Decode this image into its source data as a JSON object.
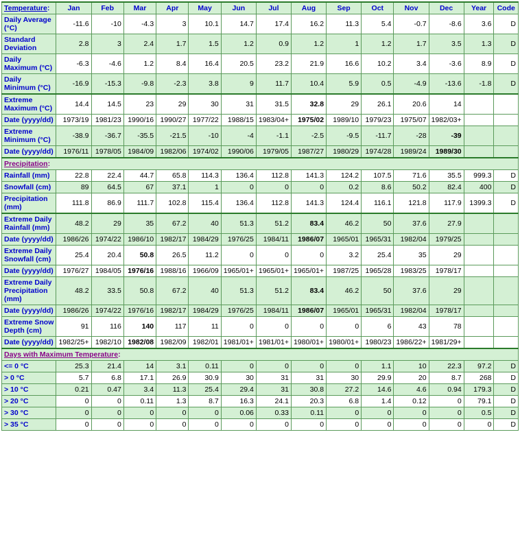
{
  "columns": [
    "Jan",
    "Feb",
    "Mar",
    "Apr",
    "May",
    "Jun",
    "Jul",
    "Aug",
    "Sep",
    "Oct",
    "Nov",
    "Dec",
    "Year",
    "Code"
  ],
  "sections": [
    {
      "title": "Temperature:",
      "header": true,
      "rows": [
        {
          "label": "Daily Average (°C)",
          "bg": "plain",
          "vals": [
            "-11.6",
            "-10",
            "-4.3",
            "3",
            "10.1",
            "14.7",
            "17.4",
            "16.2",
            "11.3",
            "5.4",
            "-0.7",
            "-8.6",
            "3.6",
            "D"
          ],
          "bold": []
        },
        {
          "label": "Standard Deviation",
          "bg": "alt",
          "vals": [
            "2.8",
            "3",
            "2.4",
            "1.7",
            "1.5",
            "1.2",
            "0.9",
            "1.2",
            "1",
            "1.2",
            "1.7",
            "3.5",
            "1.3",
            "D"
          ],
          "bold": []
        },
        {
          "label": "Daily Maximum (°C)",
          "bg": "plain",
          "vals": [
            "-6.3",
            "-4.6",
            "1.2",
            "8.4",
            "16.4",
            "20.5",
            "23.2",
            "21.9",
            "16.6",
            "10.2",
            "3.4",
            "-3.6",
            "8.9",
            "D"
          ],
          "bold": []
        },
        {
          "label": "Daily Minimum (°C)",
          "bg": "alt",
          "vals": [
            "-16.9",
            "-15.3",
            "-9.8",
            "-2.3",
            "3.8",
            "9",
            "11.7",
            "10.4",
            "5.9",
            "0.5",
            "-4.9",
            "-13.6",
            "-1.8",
            "D"
          ],
          "bold": []
        },
        {
          "label": "Extreme Maximum (°C)",
          "bg": "plain",
          "thick": true,
          "vals": [
            "14.4",
            "14.5",
            "23",
            "29",
            "30",
            "31",
            "31.5",
            "32.8",
            "29",
            "26.1",
            "20.6",
            "14",
            "",
            ""
          ],
          "bold": [
            7
          ]
        },
        {
          "label": "Date (yyyy/dd)",
          "bg": "plain",
          "vals": [
            "1973/19",
            "1981/23",
            "1990/16",
            "1990/27",
            "1977/22",
            "1988/15",
            "1983/04+",
            "1975/02",
            "1989/10",
            "1979/23",
            "1975/07",
            "1982/03+",
            "",
            ""
          ],
          "bold": [
            7
          ]
        },
        {
          "label": "Extreme Minimum (°C)",
          "bg": "alt",
          "vals": [
            "-38.9",
            "-36.7",
            "-35.5",
            "-21.5",
            "-10",
            "-4",
            "-1.1",
            "-2.5",
            "-9.5",
            "-11.7",
            "-28",
            "-39",
            "",
            ""
          ],
          "bold": [
            11
          ]
        },
        {
          "label": "Date (yyyy/dd)",
          "bg": "alt",
          "vals": [
            "1976/11",
            "1978/05",
            "1984/09",
            "1982/06",
            "1974/02",
            "1990/06",
            "1979/05",
            "1987/27",
            "1980/29",
            "1974/28",
            "1989/24",
            "1989/30",
            "",
            ""
          ],
          "bold": [
            11
          ]
        }
      ]
    },
    {
      "title": "Precipitation:",
      "rows": [
        {
          "label": "Rainfall (mm)",
          "bg": "plain",
          "vals": [
            "22.8",
            "22.4",
            "44.7",
            "65.8",
            "114.3",
            "136.4",
            "112.8",
            "141.3",
            "124.2",
            "107.5",
            "71.6",
            "35.5",
            "999.3",
            "D"
          ],
          "bold": []
        },
        {
          "label": "Snowfall (cm)",
          "bg": "alt",
          "vals": [
            "89",
            "64.5",
            "67",
            "37.1",
            "1",
            "0",
            "0",
            "0",
            "0.2",
            "8.6",
            "50.2",
            "82.4",
            "400",
            "D"
          ],
          "bold": []
        },
        {
          "label": "Precipitation (mm)",
          "bg": "plain",
          "vals": [
            "111.8",
            "86.9",
            "111.7",
            "102.8",
            "115.4",
            "136.4",
            "112.8",
            "141.3",
            "124.4",
            "116.1",
            "121.8",
            "117.9",
            "1399.3",
            "D"
          ],
          "bold": []
        },
        {
          "label": "Extreme Daily Rainfall (mm)",
          "bg": "alt",
          "thick": true,
          "vals": [
            "48.2",
            "29",
            "35",
            "67.2",
            "40",
            "51.3",
            "51.2",
            "83.4",
            "46.2",
            "50",
            "37.6",
            "27.9",
            "",
            ""
          ],
          "bold": [
            7
          ]
        },
        {
          "label": "Date (yyyy/dd)",
          "bg": "alt",
          "vals": [
            "1986/26",
            "1974/22",
            "1986/10",
            "1982/17",
            "1984/29",
            "1976/25",
            "1984/11",
            "1986/07",
            "1965/01",
            "1965/31",
            "1982/04",
            "1979/25",
            "",
            ""
          ],
          "bold": [
            7
          ]
        },
        {
          "label": "Extreme Daily Snowfall (cm)",
          "bg": "plain",
          "vals": [
            "25.4",
            "20.4",
            "50.8",
            "26.5",
            "11.2",
            "0",
            "0",
            "0",
            "3.2",
            "25.4",
            "35",
            "29",
            "",
            ""
          ],
          "bold": [
            2
          ]
        },
        {
          "label": "Date (yyyy/dd)",
          "bg": "plain",
          "vals": [
            "1976/27",
            "1984/05",
            "1976/16",
            "1988/16",
            "1966/09",
            "1965/01+",
            "1965/01+",
            "1965/01+",
            "1987/25",
            "1965/28",
            "1983/25",
            "1978/17",
            "",
            ""
          ],
          "bold": [
            2
          ]
        },
        {
          "label": "Extreme Daily Precipitation (mm)",
          "bg": "alt",
          "vals": [
            "48.2",
            "33.5",
            "50.8",
            "67.2",
            "40",
            "51.3",
            "51.2",
            "83.4",
            "46.2",
            "50",
            "37.6",
            "29",
            "",
            ""
          ],
          "bold": [
            7
          ]
        },
        {
          "label": "Date (yyyy/dd)",
          "bg": "alt",
          "vals": [
            "1986/26",
            "1974/22",
            "1976/16",
            "1982/17",
            "1984/29",
            "1976/25",
            "1984/11",
            "1986/07",
            "1965/01",
            "1965/31",
            "1982/04",
            "1978/17",
            "",
            ""
          ],
          "bold": [
            7
          ]
        },
        {
          "label": "Extreme Snow Depth (cm)",
          "bg": "plain",
          "vals": [
            "91",
            "116",
            "140",
            "117",
            "11",
            "0",
            "0",
            "0",
            "0",
            "6",
            "43",
            "78",
            "",
            ""
          ],
          "bold": [
            2
          ]
        },
        {
          "label": "Date (yyyy/dd)",
          "bg": "plain",
          "vals": [
            "1982/25+",
            "1982/10",
            "1982/08",
            "1982/09",
            "1982/01",
            "1981/01+",
            "1981/01+",
            "1980/01+",
            "1980/01+",
            "1980/23",
            "1986/22+",
            "1981/29+",
            "",
            ""
          ],
          "bold": [
            2
          ]
        }
      ]
    },
    {
      "title": "Days with Maximum Temperature:",
      "rows": [
        {
          "label": "<= 0 °C",
          "bg": "alt",
          "vals": [
            "25.3",
            "21.4",
            "14",
            "3.1",
            "0.11",
            "0",
            "0",
            "0",
            "0",
            "1.1",
            "10",
            "22.3",
            "97.2",
            "D"
          ],
          "bold": []
        },
        {
          "label": "> 0 °C",
          "bg": "plain",
          "vals": [
            "5.7",
            "6.8",
            "17.1",
            "26.9",
            "30.9",
            "30",
            "31",
            "31",
            "30",
            "29.9",
            "20",
            "8.7",
            "268",
            "D"
          ],
          "bold": []
        },
        {
          "label": "> 10 °C",
          "bg": "alt",
          "vals": [
            "0.21",
            "0.47",
            "3.4",
            "11.3",
            "25.4",
            "29.4",
            "31",
            "30.8",
            "27.2",
            "14.6",
            "4.6",
            "0.94",
            "179.3",
            "D"
          ],
          "bold": []
        },
        {
          "label": "> 20 °C",
          "bg": "plain",
          "vals": [
            "0",
            "0",
            "0.11",
            "1.3",
            "8.7",
            "16.3",
            "24.1",
            "20.3",
            "6.8",
            "1.4",
            "0.12",
            "0",
            "79.1",
            "D"
          ],
          "bold": []
        },
        {
          "label": "> 30 °C",
          "bg": "alt",
          "vals": [
            "0",
            "0",
            "0",
            "0",
            "0",
            "0.06",
            "0.33",
            "0.11",
            "0",
            "0",
            "0",
            "0",
            "0.5",
            "D"
          ],
          "bold": []
        },
        {
          "label": "> 35 °C",
          "bg": "plain",
          "vals": [
            "0",
            "0",
            "0",
            "0",
            "0",
            "0",
            "0",
            "0",
            "0",
            "0",
            "0",
            "0",
            "0",
            "D"
          ],
          "bold": []
        }
      ]
    }
  ]
}
